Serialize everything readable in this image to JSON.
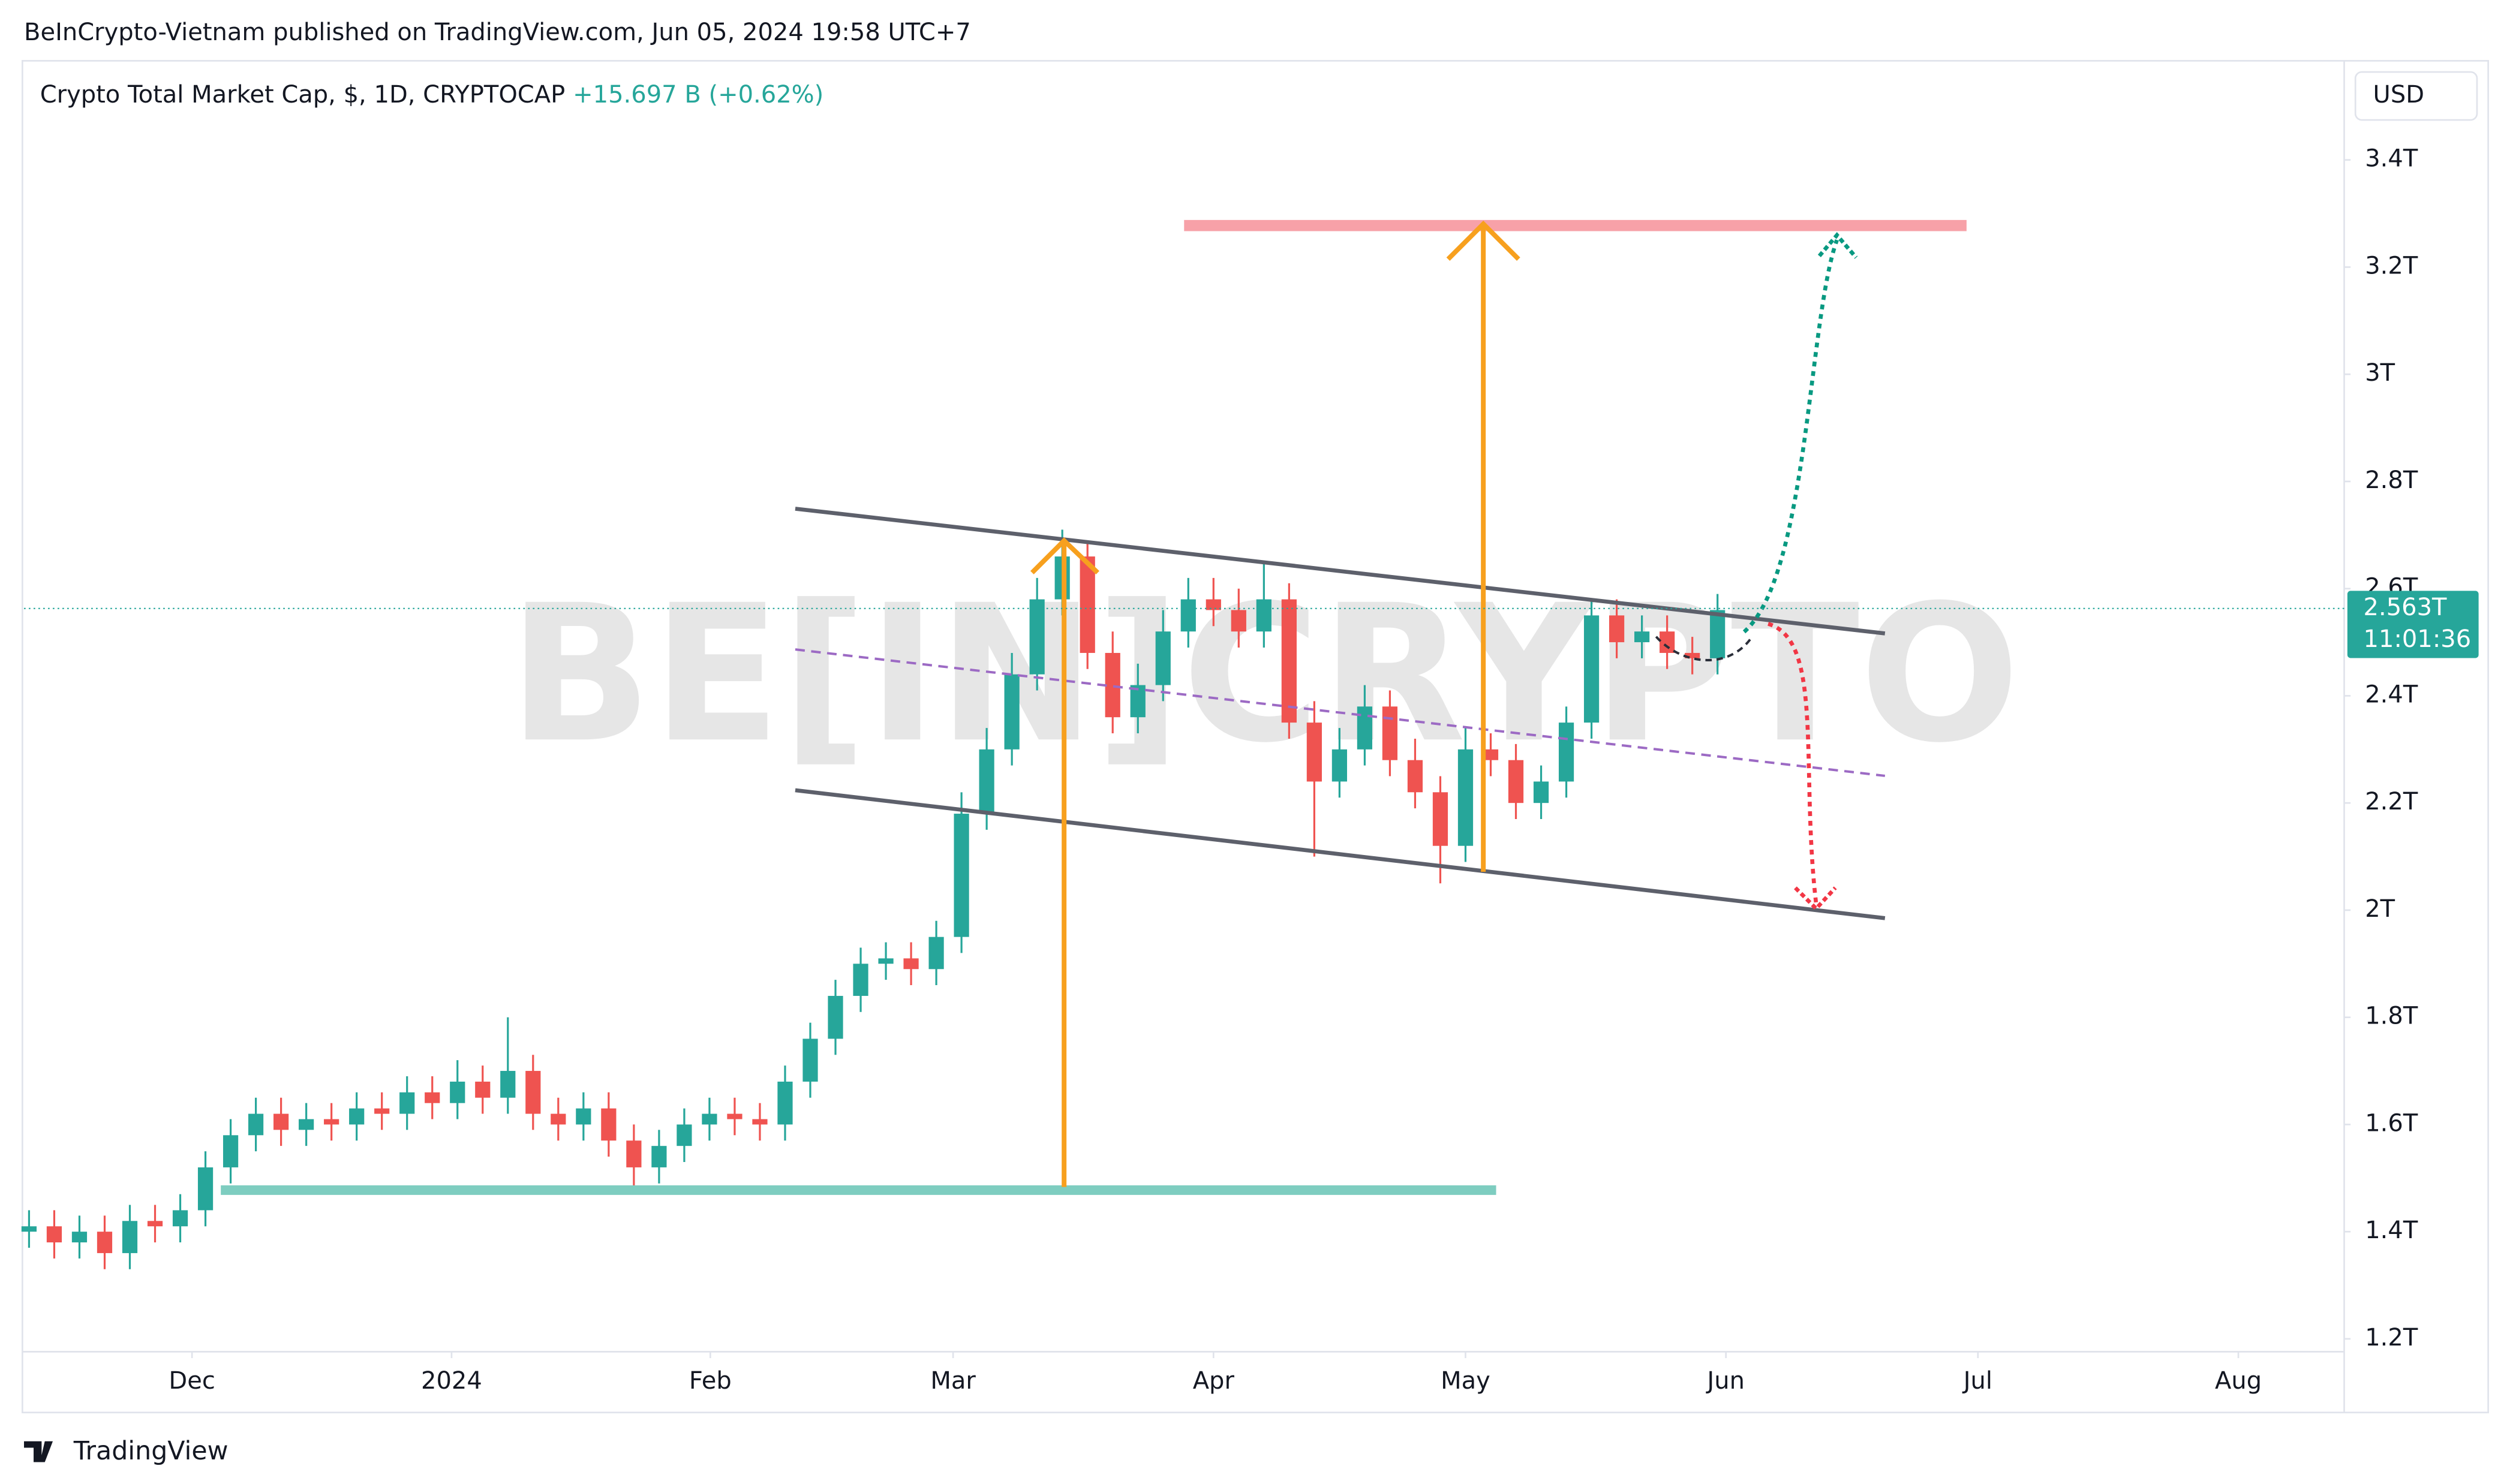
{
  "header": {
    "text": "BeInCrypto-Vietnam published on TradingView.com, Jun 05, 2024 19:58 UTC+7"
  },
  "footer": {
    "brand": "TradingView"
  },
  "chart_data": {
    "type": "candlestick",
    "title": "Crypto Total Market Cap, $, 1D, CRYPTOCAP",
    "change": "+15.697 B (+0.62%)",
    "currency": "USD",
    "watermark": "BE[IN]CRYPTO",
    "price_tag": {
      "value": 2.563,
      "label": "2.563T"
    },
    "countdown": "11:01:36",
    "up_color": "#26a69a",
    "down_color": "#ef5350",
    "grid": false,
    "xlim": [
      -0.6,
      275.6
    ],
    "xticks": [
      {
        "value": 19.4,
        "label": "Dec"
      },
      {
        "value": 50.3,
        "label": "2024"
      },
      {
        "value": 81.1,
        "label": "Feb"
      },
      {
        "value": 110,
        "label": "Mar"
      },
      {
        "value": 141,
        "label": "Apr"
      },
      {
        "value": 171,
        "label": "May"
      },
      {
        "value": 202,
        "label": "Jun"
      },
      {
        "value": 232,
        "label": "Jul"
      },
      {
        "value": 263,
        "label": "Aug"
      }
    ],
    "ylim": [
      1.176,
      3.585
    ],
    "yticks": [
      {
        "value": 1.2,
        "label": "1.2T"
      },
      {
        "value": 1.4,
        "label": "1.4T"
      },
      {
        "value": 1.6,
        "label": "1.6T"
      },
      {
        "value": 1.8,
        "label": "1.8T"
      },
      {
        "value": 2,
        "label": "2T"
      },
      {
        "value": 2.2,
        "label": "2.2T"
      },
      {
        "value": 2.4,
        "label": "2.4T"
      },
      {
        "value": 2.6,
        "label": "2.6T"
      },
      {
        "value": 2.8,
        "label": "2.8T"
      },
      {
        "value": 3,
        "label": "3T"
      },
      {
        "value": 3.2,
        "label": "3.2T"
      },
      {
        "value": 3.4,
        "label": "3.4T"
      }
    ],
    "x": [
      0,
      3,
      6,
      9,
      12,
      15,
      18,
      21,
      24,
      27,
      30,
      33,
      36,
      39,
      42,
      45,
      48,
      51,
      54,
      57,
      60,
      63,
      66,
      69,
      72,
      75,
      78,
      81,
      84,
      87,
      90,
      93,
      96,
      99,
      102,
      105,
      108,
      111,
      114,
      117,
      120,
      123,
      126,
      129,
      132,
      135,
      138,
      141,
      144,
      147,
      150,
      153,
      156,
      159,
      162,
      165,
      168,
      171,
      174,
      177,
      180,
      183,
      186,
      189,
      192,
      195,
      198,
      201
    ],
    "open": [
      1.4,
      1.41,
      1.38,
      1.4,
      1.36,
      1.42,
      1.41,
      1.44,
      1.52,
      1.58,
      1.62,
      1.59,
      1.61,
      1.6,
      1.63,
      1.62,
      1.66,
      1.64,
      1.68,
      1.65,
      1.7,
      1.62,
      1.6,
      1.63,
      1.57,
      1.52,
      1.56,
      1.6,
      1.62,
      1.61,
      1.6,
      1.68,
      1.76,
      1.84,
      1.9,
      1.91,
      1.89,
      1.95,
      2.18,
      2.3,
      2.44,
      2.58,
      2.66,
      2.48,
      2.36,
      2.42,
      2.52,
      2.58,
      2.56,
      2.52,
      2.58,
      2.35,
      2.24,
      2.3,
      2.38,
      2.28,
      2.22,
      2.12,
      2.3,
      2.28,
      2.2,
      2.24,
      2.35,
      2.55,
      2.5,
      2.52,
      2.48,
      2.47
    ],
    "high": [
      1.44,
      1.44,
      1.43,
      1.43,
      1.45,
      1.45,
      1.47,
      1.55,
      1.61,
      1.65,
      1.65,
      1.64,
      1.64,
      1.66,
      1.66,
      1.69,
      1.69,
      1.72,
      1.71,
      1.8,
      1.73,
      1.65,
      1.66,
      1.66,
      1.6,
      1.59,
      1.63,
      1.65,
      1.65,
      1.64,
      1.71,
      1.79,
      1.87,
      1.93,
      1.94,
      1.94,
      1.98,
      2.22,
      2.34,
      2.48,
      2.62,
      2.71,
      2.69,
      2.52,
      2.46,
      2.56,
      2.62,
      2.62,
      2.6,
      2.65,
      2.61,
      2.39,
      2.34,
      2.42,
      2.41,
      2.32,
      2.25,
      2.34,
      2.33,
      2.31,
      2.27,
      2.38,
      2.58,
      2.58,
      2.55,
      2.55,
      2.51,
      2.59
    ],
    "low": [
      1.37,
      1.35,
      1.35,
      1.33,
      1.33,
      1.38,
      1.38,
      1.41,
      1.49,
      1.55,
      1.56,
      1.56,
      1.57,
      1.57,
      1.59,
      1.59,
      1.61,
      1.61,
      1.62,
      1.62,
      1.59,
      1.57,
      1.57,
      1.54,
      1.47,
      1.49,
      1.53,
      1.57,
      1.58,
      1.57,
      1.57,
      1.65,
      1.73,
      1.81,
      1.87,
      1.86,
      1.86,
      1.92,
      2.15,
      2.27,
      2.41,
      2.55,
      2.45,
      2.33,
      2.33,
      2.39,
      2.49,
      2.53,
      2.49,
      2.49,
      2.32,
      2.1,
      2.21,
      2.27,
      2.25,
      2.19,
      2.05,
      2.09,
      2.25,
      2.17,
      2.17,
      2.21,
      2.32,
      2.47,
      2.47,
      2.45,
      2.44,
      2.44
    ],
    "close": [
      1.41,
      1.38,
      1.4,
      1.36,
      1.42,
      1.41,
      1.44,
      1.52,
      1.58,
      1.62,
      1.59,
      1.61,
      1.6,
      1.63,
      1.62,
      1.66,
      1.64,
      1.68,
      1.65,
      1.7,
      1.62,
      1.6,
      1.63,
      1.57,
      1.52,
      1.56,
      1.6,
      1.62,
      1.61,
      1.6,
      1.68,
      1.76,
      1.84,
      1.9,
      1.91,
      1.89,
      1.95,
      2.18,
      2.3,
      2.44,
      2.58,
      2.66,
      2.48,
      2.36,
      2.42,
      2.52,
      2.58,
      2.56,
      2.52,
      2.58,
      2.35,
      2.24,
      2.3,
      2.38,
      2.28,
      2.22,
      2.12,
      2.3,
      2.28,
      2.2,
      2.24,
      2.35,
      2.55,
      2.5,
      2.52,
      2.48,
      2.47,
      2.56
    ]
  }
}
